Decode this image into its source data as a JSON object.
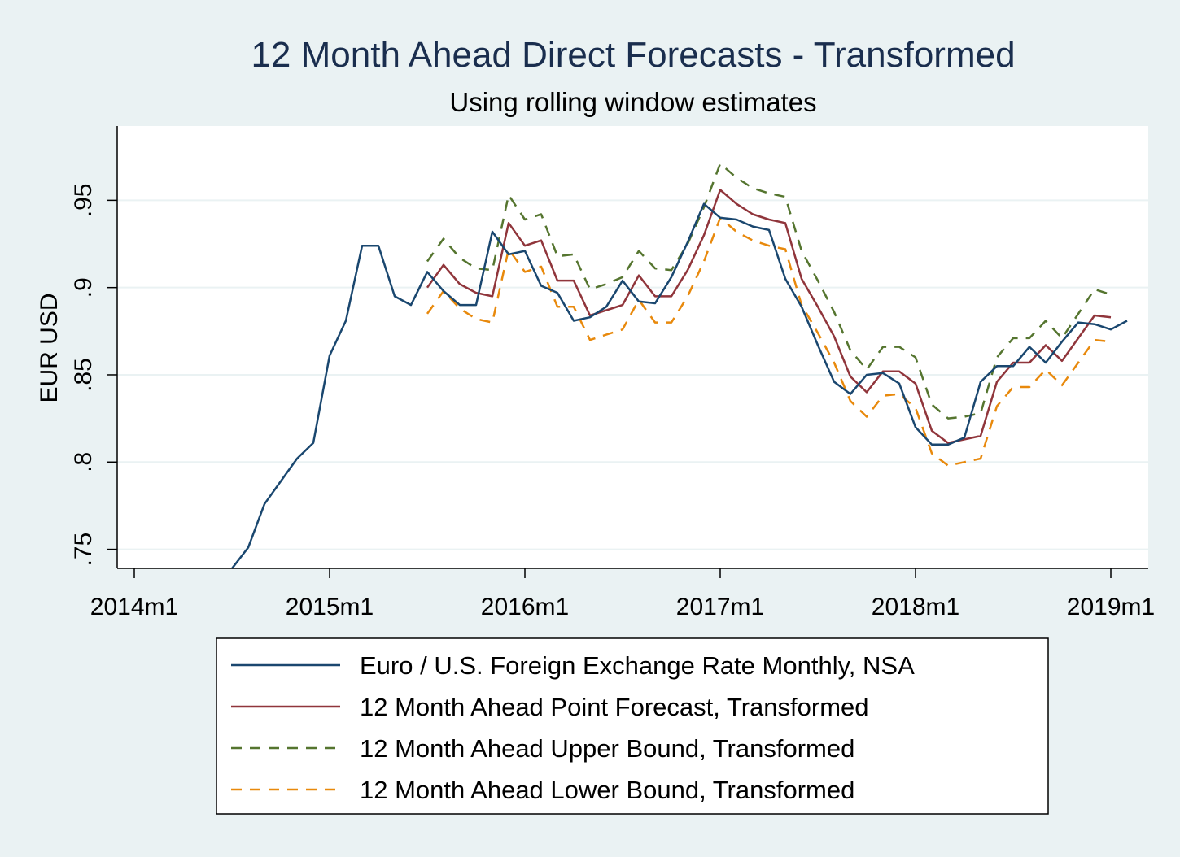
{
  "chart_data": {
    "type": "line",
    "title": "12 Month Ahead Direct Forecasts - Transformed",
    "subtitle": "Using rolling window estimates",
    "ylabel": "EUR USD",
    "xlabel": "",
    "ylim": [
      0.73,
      0.98
    ],
    "yticks": [
      0.75,
      0.8,
      0.85,
      0.9,
      0.95
    ],
    "ytick_labels": [
      ".75",
      ".8",
      ".85",
      ".9",
      ".95"
    ],
    "xticks": [
      "2014m1",
      "2015m1",
      "2016m1",
      "2017m1",
      "2018m1",
      "2019m1"
    ],
    "grid": true,
    "legend_position": "bottom",
    "series": [
      {
        "name": "Euro / U.S. Foreign Exchange Rate Monthly, NSA",
        "color": "#1a476f",
        "dash": "solid",
        "x": [
          "2014m7",
          "2014m8",
          "2014m9",
          "2014m10",
          "2014m11",
          "2014m12",
          "2015m1",
          "2015m2",
          "2015m3",
          "2015m4",
          "2015m5",
          "2015m6",
          "2015m7",
          "2015m8",
          "2015m9",
          "2015m10",
          "2015m11",
          "2015m12",
          "2016m1",
          "2016m2",
          "2016m3",
          "2016m4",
          "2016m5",
          "2016m6",
          "2016m7",
          "2016m8",
          "2016m9",
          "2016m10",
          "2016m11",
          "2016m12",
          "2017m1",
          "2017m2",
          "2017m3",
          "2017m4",
          "2017m5",
          "2017m6",
          "2017m7",
          "2017m8",
          "2017m9",
          "2017m10",
          "2017m11",
          "2017m12",
          "2018m1",
          "2018m2",
          "2018m3",
          "2018m4",
          "2018m5",
          "2018m6",
          "2018m7",
          "2018m8",
          "2018m9",
          "2018m10",
          "2018m11",
          "2018m12",
          "2019m1",
          "2019m2"
        ],
        "values": [
          0.739,
          0.751,
          0.776,
          0.789,
          0.802,
          0.811,
          0.861,
          0.881,
          0.924,
          0.924,
          0.895,
          0.89,
          0.909,
          0.898,
          0.89,
          0.89,
          0.932,
          0.919,
          0.921,
          0.901,
          0.897,
          0.881,
          0.883,
          0.889,
          0.904,
          0.892,
          0.891,
          0.906,
          0.926,
          0.948,
          0.94,
          0.939,
          0.935,
          0.933,
          0.905,
          0.889,
          0.867,
          0.846,
          0.839,
          0.85,
          0.851,
          0.845,
          0.82,
          0.81,
          0.81,
          0.814,
          0.846,
          0.855,
          0.855,
          0.866,
          0.857,
          0.869,
          0.88,
          0.879,
          0.876,
          0.881
        ]
      },
      {
        "name": "12 Month Ahead Point Forecast, Transformed",
        "color": "#90353b",
        "dash": "solid",
        "x": [
          "2015m7",
          "2015m8",
          "2015m9",
          "2015m10",
          "2015m11",
          "2015m12",
          "2016m1",
          "2016m2",
          "2016m3",
          "2016m4",
          "2016m5",
          "2016m6",
          "2016m7",
          "2016m8",
          "2016m9",
          "2016m10",
          "2016m11",
          "2016m12",
          "2017m1",
          "2017m2",
          "2017m3",
          "2017m4",
          "2017m5",
          "2017m6",
          "2017m7",
          "2017m8",
          "2017m9",
          "2017m10",
          "2017m11",
          "2017m12",
          "2018m1",
          "2018m2",
          "2018m3",
          "2018m4",
          "2018m5",
          "2018m6",
          "2018m7",
          "2018m8",
          "2018m9",
          "2018m10",
          "2018m11",
          "2018m12",
          "2019m1"
        ],
        "values": [
          0.9,
          0.913,
          0.902,
          0.897,
          0.895,
          0.937,
          0.924,
          0.927,
          0.904,
          0.904,
          0.884,
          0.887,
          0.89,
          0.907,
          0.895,
          0.895,
          0.91,
          0.93,
          0.956,
          0.948,
          0.942,
          0.939,
          0.937,
          0.905,
          0.889,
          0.872,
          0.849,
          0.84,
          0.852,
          0.852,
          0.845,
          0.818,
          0.811,
          0.813,
          0.815,
          0.846,
          0.857,
          0.857,
          0.867,
          0.858,
          0.871,
          0.884,
          0.883
        ]
      },
      {
        "name": "12 Month Ahead Upper Bound, Transformed",
        "color": "#55752f",
        "dash": "dashed",
        "x": [
          "2015m7",
          "2015m8",
          "2015m9",
          "2015m10",
          "2015m11",
          "2015m12",
          "2016m1",
          "2016m2",
          "2016m3",
          "2016m4",
          "2016m5",
          "2016m6",
          "2016m7",
          "2016m8",
          "2016m9",
          "2016m10",
          "2016m11",
          "2016m12",
          "2017m1",
          "2017m2",
          "2017m3",
          "2017m4",
          "2017m5",
          "2017m6",
          "2017m7",
          "2017m8",
          "2017m9",
          "2017m10",
          "2017m11",
          "2017m12",
          "2018m1",
          "2018m2",
          "2018m3",
          "2018m4",
          "2018m5",
          "2018m6",
          "2018m7",
          "2018m8",
          "2018m9",
          "2018m10",
          "2018m11",
          "2018m12",
          "2019m1"
        ],
        "values": [
          0.915,
          0.928,
          0.917,
          0.911,
          0.91,
          0.953,
          0.939,
          0.942,
          0.918,
          0.919,
          0.899,
          0.902,
          0.906,
          0.921,
          0.911,
          0.91,
          0.925,
          0.946,
          0.971,
          0.963,
          0.957,
          0.954,
          0.952,
          0.921,
          0.904,
          0.886,
          0.864,
          0.853,
          0.866,
          0.866,
          0.86,
          0.833,
          0.825,
          0.826,
          0.828,
          0.86,
          0.871,
          0.871,
          0.881,
          0.871,
          0.885,
          0.899,
          0.896
        ]
      },
      {
        "name": "12 Month Ahead Lower Bound, Transformed",
        "color": "#e8890c",
        "dash": "dashed",
        "x": [
          "2015m7",
          "2015m8",
          "2015m9",
          "2015m10",
          "2015m11",
          "2015m12",
          "2016m1",
          "2016m2",
          "2016m3",
          "2016m4",
          "2016m5",
          "2016m6",
          "2016m7",
          "2016m8",
          "2016m9",
          "2016m10",
          "2016m11",
          "2016m12",
          "2017m1",
          "2017m2",
          "2017m3",
          "2017m4",
          "2017m5",
          "2017m6",
          "2017m7",
          "2017m8",
          "2017m9",
          "2017m10",
          "2017m11",
          "2017m12",
          "2018m1",
          "2018m2",
          "2018m3",
          "2018m4",
          "2018m5",
          "2018m6",
          "2018m7",
          "2018m8",
          "2018m9",
          "2018m10",
          "2018m11",
          "2018m12",
          "2019m1"
        ],
        "values": [
          0.885,
          0.898,
          0.888,
          0.882,
          0.88,
          0.922,
          0.909,
          0.912,
          0.889,
          0.889,
          0.87,
          0.873,
          0.876,
          0.893,
          0.88,
          0.88,
          0.895,
          0.915,
          0.94,
          0.932,
          0.927,
          0.924,
          0.922,
          0.89,
          0.874,
          0.857,
          0.835,
          0.826,
          0.838,
          0.839,
          0.831,
          0.805,
          0.798,
          0.8,
          0.802,
          0.832,
          0.843,
          0.843,
          0.853,
          0.844,
          0.857,
          0.87,
          0.869
        ]
      }
    ]
  }
}
